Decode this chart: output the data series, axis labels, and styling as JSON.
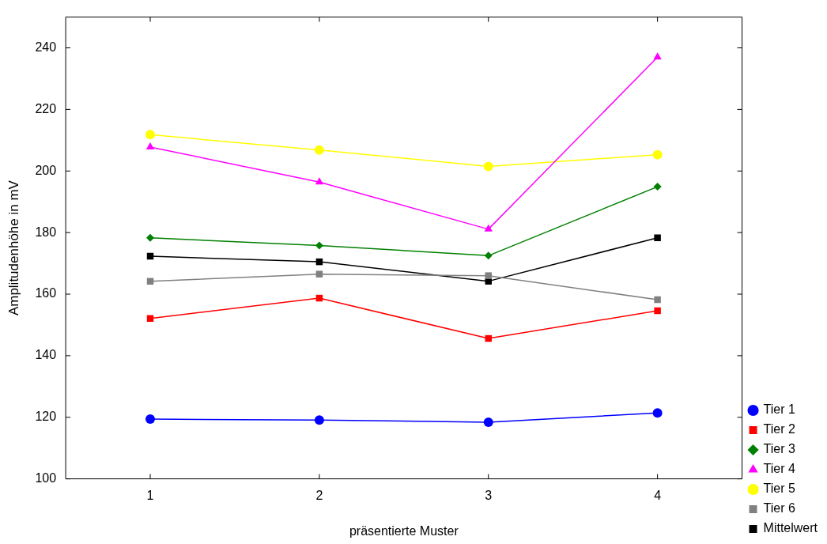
{
  "chart_data": {
    "type": "line",
    "xlabel": "präsentierte Muster",
    "ylabel": "Amplitudenhöhe in mV",
    "x": [
      1,
      2,
      3,
      4
    ],
    "xlim": [
      0.5,
      4.5
    ],
    "xticks": [
      1,
      2,
      3,
      4
    ],
    "ylim": [
      100,
      250
    ],
    "yticks": [
      100,
      120,
      140,
      160,
      180,
      200,
      220,
      240
    ],
    "grid": false,
    "legend": "bottom right",
    "line_style": "solid",
    "series": [
      {
        "name": "Tier 1",
        "color": "#0000ff",
        "marker": "circle",
        "values": [
          119.4,
          119.1,
          118.4,
          121.4
        ]
      },
      {
        "name": "Tier 2",
        "color": "#ff0000",
        "marker": "square",
        "values": [
          152.1,
          158.7,
          145.6,
          154.6
        ]
      },
      {
        "name": "Tier 3",
        "color": "#008000",
        "marker": "diamond",
        "values": [
          178.3,
          175.8,
          172.5,
          194.9
        ]
      },
      {
        "name": "Tier 4",
        "color": "#ff00ff",
        "marker": "triangle",
        "values": [
          207.8,
          196.4,
          181.1,
          237.0
        ]
      },
      {
        "name": "Tier 5",
        "color": "#ffff00",
        "marker": "circle",
        "values": [
          211.8,
          206.8,
          201.5,
          205.3
        ]
      },
      {
        "name": "Tier 6",
        "color": "#808080",
        "marker": "square",
        "values": [
          164.2,
          166.5,
          166.0,
          158.2
        ]
      },
      {
        "name": "Mittelwert",
        "color": "#000000",
        "marker": "square",
        "values": [
          172.3,
          170.5,
          164.2,
          178.3
        ]
      }
    ]
  }
}
